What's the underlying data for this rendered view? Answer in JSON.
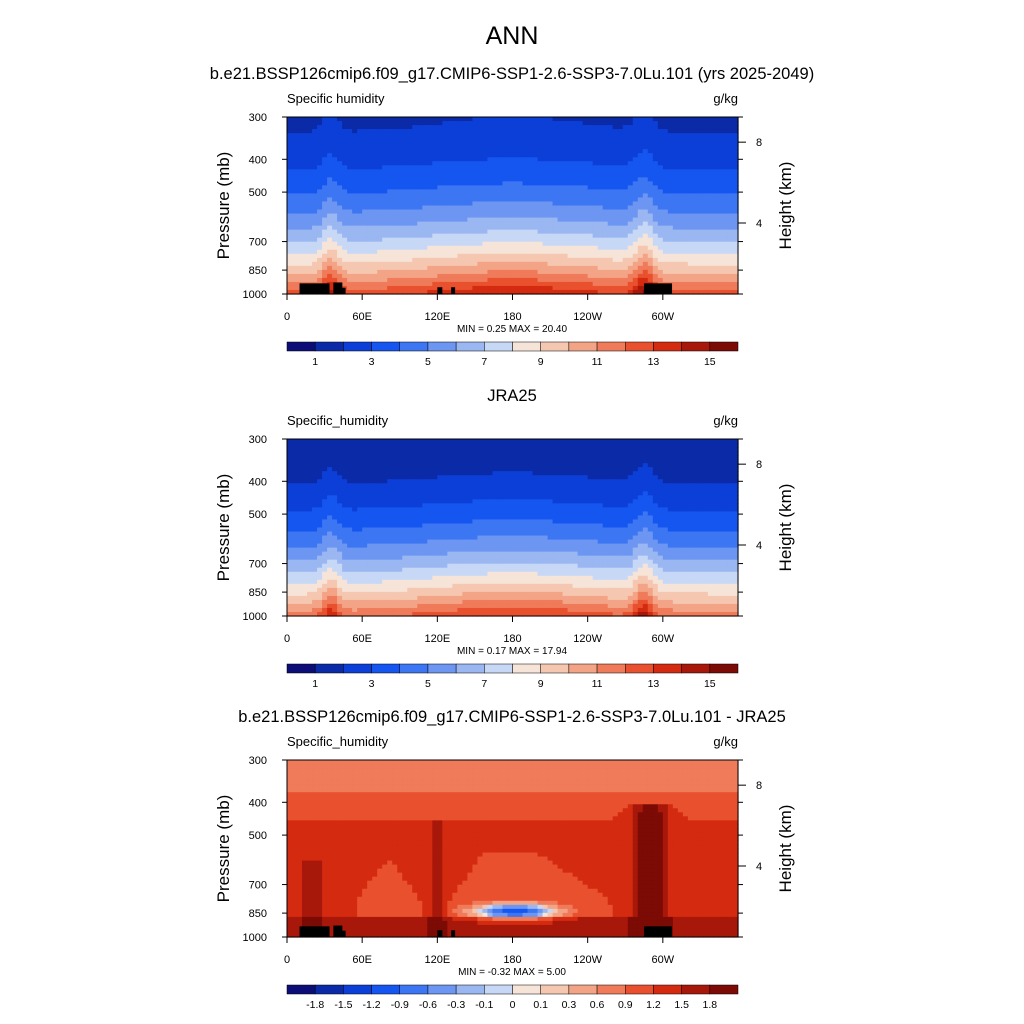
{
  "figure": {
    "main_title": "ANN",
    "case_title": "b.e21.BSSP126cmip6.f09_g17.CMIP6-SSP1-2.6-SSP3-7.0Lu.101 (yrs 2025-2049)",
    "diff_title": "b.e21.BSSP126cmip6.f09_g17.CMIP6-SSP1-2.6-SSP3-7.0Lu.101 - JRA25"
  },
  "colors": {
    "full_scale": [
      "#0d0d78",
      "#0a2aa8",
      "#0c3fd8",
      "#1656f0",
      "#3d76f2",
      "#6c96f1",
      "#9bb7f2",
      "#c7d8f6",
      "#f7e4d8",
      "#f6c7b0",
      "#f4a486",
      "#ef7b5a",
      "#e9512e",
      "#d42a10",
      "#a8180a",
      "#7c0a05"
    ],
    "diff_scale": [
      "#0d0d78",
      "#0a2aa8",
      "#0c3fd8",
      "#1656f0",
      "#3d76f2",
      "#6c96f1",
      "#9bb7f2",
      "#c7d8f6",
      "#f7e4d8",
      "#f6c7b0",
      "#f4a486",
      "#ef7b5a",
      "#e9512e",
      "#d42a10",
      "#a8180a",
      "#7c0a05"
    ],
    "topography": "#000000",
    "frame": "#000000"
  },
  "chart_data": [
    {
      "type": "heatmap",
      "panel_title": "",
      "variable_label": "Specific humidity",
      "units": "g/kg",
      "xlabel": "",
      "ylabel": "Pressure (mb)",
      "y2label": "Height (km)",
      "x_ticks": [
        "0",
        "60E",
        "120E",
        "180",
        "120W",
        "60W"
      ],
      "y_ticks": [
        "300",
        "400",
        "500",
        "700",
        "850",
        "1000"
      ],
      "y2_ticks": [
        "8",
        "4"
      ],
      "ylim": [
        1000,
        300
      ],
      "xlim": [
        0,
        360
      ],
      "stats": "MIN =   0.25  MAX =  20.40",
      "min": 0.25,
      "max": 20.4,
      "colorbar_labels": [
        "1",
        "3",
        "5",
        "7",
        "9",
        "11",
        "13",
        "15"
      ],
      "field": "full",
      "topography": true
    },
    {
      "type": "heatmap",
      "panel_title": "JRA25",
      "variable_label": "Specific_humidity",
      "units": "g/kg",
      "xlabel": "",
      "ylabel": "Pressure (mb)",
      "y2label": "Height (km)",
      "x_ticks": [
        "0",
        "60E",
        "120E",
        "180",
        "120W",
        "60W"
      ],
      "y_ticks": [
        "300",
        "400",
        "500",
        "700",
        "850",
        "1000"
      ],
      "y2_ticks": [
        "8",
        "4"
      ],
      "ylim": [
        1000,
        300
      ],
      "xlim": [
        0,
        360
      ],
      "stats": "MIN =   0.17  MAX =  17.94",
      "min": 0.17,
      "max": 17.94,
      "colorbar_labels": [
        "1",
        "3",
        "5",
        "7",
        "9",
        "11",
        "13",
        "15"
      ],
      "field": "full",
      "topography": false
    },
    {
      "type": "heatmap",
      "panel_title": "",
      "variable_label": "Specific_humidity",
      "units": "g/kg",
      "xlabel": "",
      "ylabel": "Pressure (mb)",
      "y2label": "Height (km)",
      "x_ticks": [
        "0",
        "60E",
        "120E",
        "180",
        "120W",
        "60W"
      ],
      "y_ticks": [
        "300",
        "400",
        "500",
        "700",
        "850",
        "1000"
      ],
      "y2_ticks": [
        "8",
        "4"
      ],
      "ylim": [
        1000,
        300
      ],
      "xlim": [
        0,
        360
      ],
      "stats": "MIN =  -0.32  MAX =   5.00",
      "min": -0.32,
      "max": 5.0,
      "colorbar_labels": [
        "-1.8",
        "-1.5",
        "-1.2",
        "-0.9",
        "-0.6",
        "-0.3",
        "-0.1",
        "0",
        "0.1",
        "0.3",
        "0.6",
        "0.9",
        "1.2",
        "1.5",
        "1.8"
      ],
      "field": "diff",
      "topography": true
    }
  ]
}
